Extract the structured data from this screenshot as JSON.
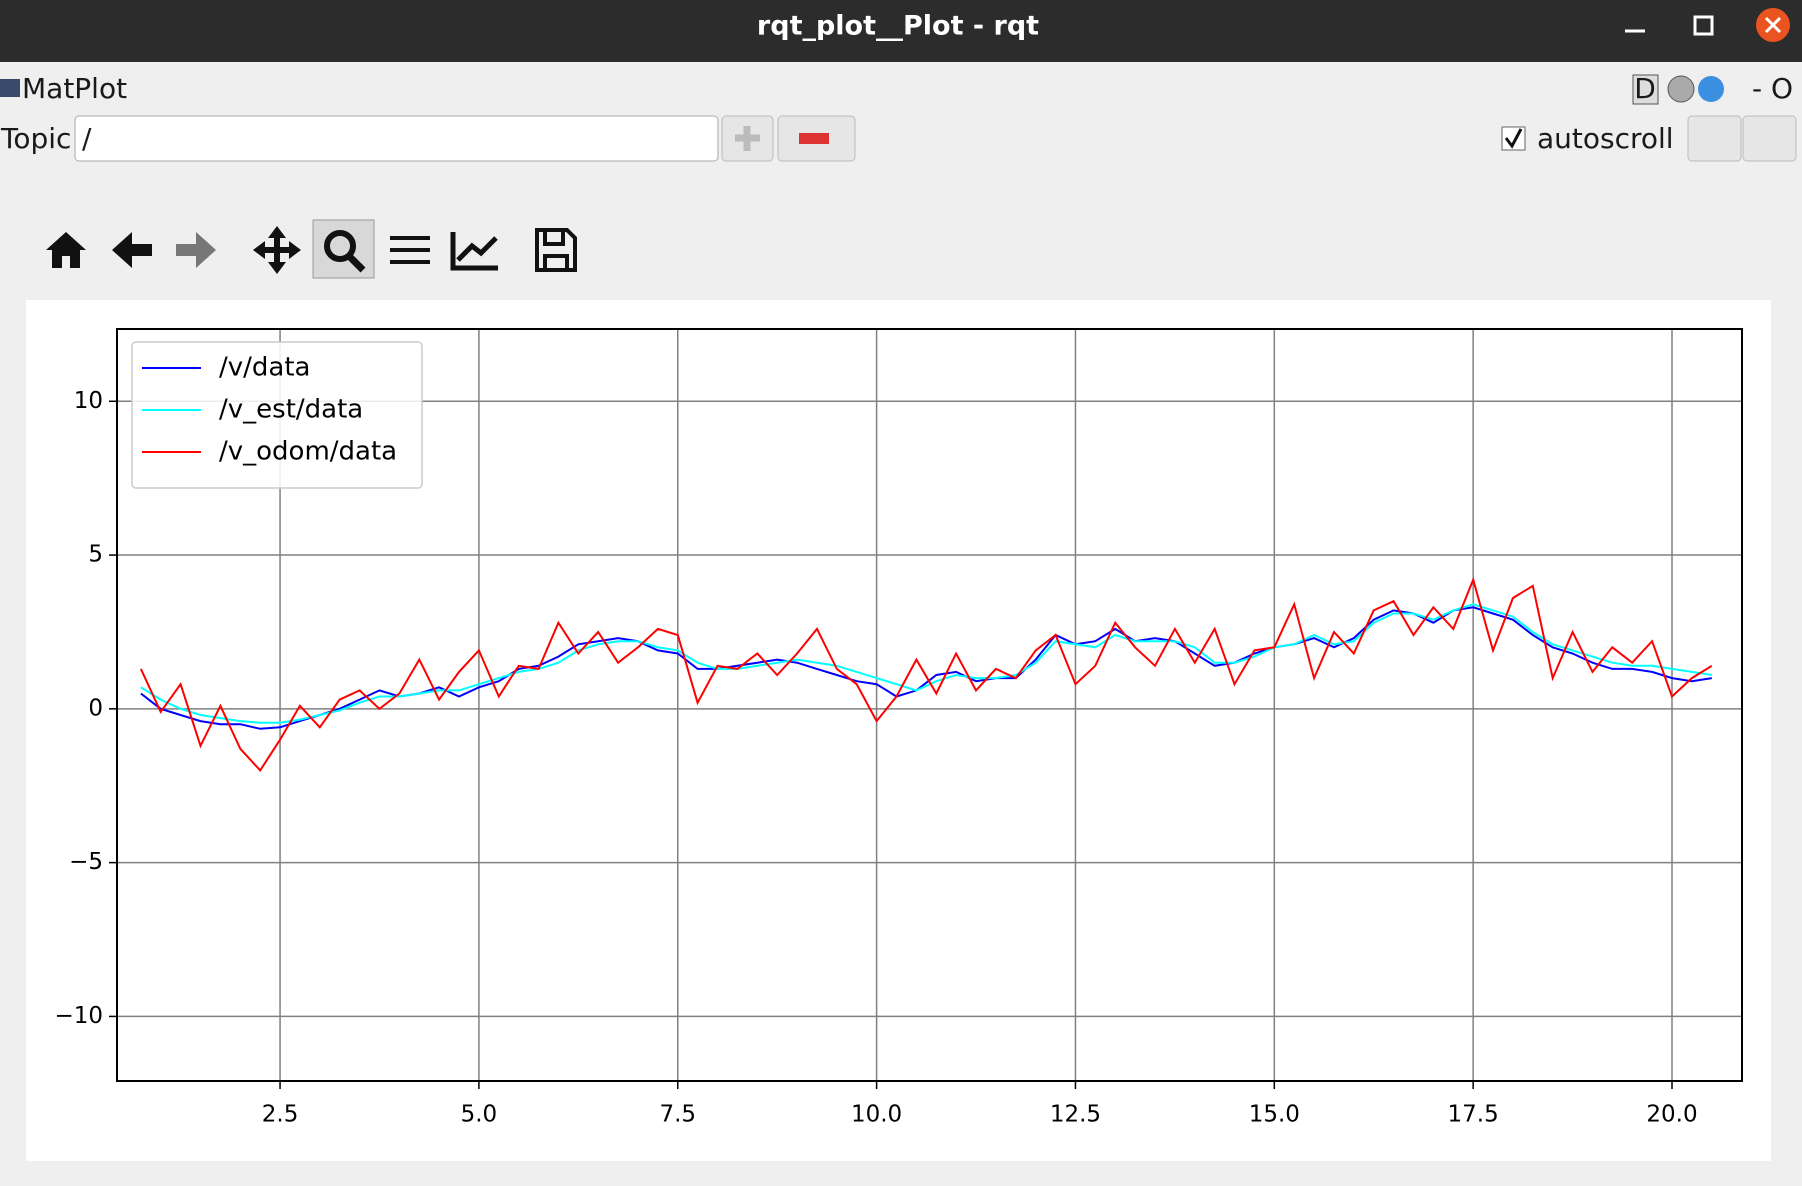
{
  "window": {
    "title": "rqt_plot__Plot - rqt",
    "plugin_name": "MatPlot",
    "plugin_controls": "D",
    "plugin_right": "- O"
  },
  "toolbar": {
    "topic_label": "Topic",
    "topic_value": "/",
    "autoscroll_label": "autoscroll"
  },
  "chart_data": {
    "type": "line",
    "x": [
      0.75,
      1,
      1.25,
      1.5,
      1.75,
      2,
      2.25,
      2.5,
      2.75,
      3,
      3.25,
      3.5,
      3.75,
      4,
      4.25,
      4.5,
      4.75,
      5,
      5.25,
      5.5,
      5.75,
      6,
      6.25,
      6.5,
      6.75,
      7,
      7.25,
      7.5,
      7.75,
      8,
      8.25,
      8.5,
      8.75,
      9,
      9.25,
      9.5,
      9.75,
      10,
      10.25,
      10.5,
      10.75,
      11,
      11.25,
      11.5,
      11.75,
      12,
      12.25,
      12.5,
      12.75,
      13,
      13.25,
      13.5,
      13.75,
      14,
      14.25,
      14.5,
      14.75,
      15,
      15.25,
      15.5,
      15.75,
      16,
      16.25,
      16.5,
      16.75,
      17,
      17.25,
      17.5,
      17.75,
      18,
      18.25,
      18.5,
      18.75,
      19,
      19.25,
      19.5,
      19.75,
      20,
      20.25,
      20.5
    ],
    "series": [
      {
        "name": "/v/data",
        "color": "#0000ff",
        "values": [
          0.5,
          0,
          -0.2,
          -0.4,
          -0.5,
          -0.5,
          -0.65,
          -0.6,
          -0.4,
          -0.2,
          0,
          0.3,
          0.6,
          0.4,
          0.5,
          0.7,
          0.4,
          0.7,
          0.9,
          1.3,
          1.4,
          1.7,
          2.1,
          2.2,
          2.3,
          2.2,
          1.9,
          1.8,
          1.3,
          1.3,
          1.4,
          1.5,
          1.6,
          1.5,
          1.3,
          1.1,
          0.9,
          0.8,
          0.4,
          0.6,
          1.1,
          1.2,
          0.9,
          1.0,
          1.0,
          1.6,
          2.4,
          2.1,
          2.2,
          2.6,
          2.2,
          2.3,
          2.2,
          1.8,
          1.4,
          1.5,
          1.8,
          2.0,
          2.1,
          2.3,
          2.0,
          2.3,
          2.9,
          3.2,
          3.1,
          2.8,
          3.2,
          3.3,
          3.1,
          2.9,
          2.4,
          2.0,
          1.8,
          1.5,
          1.3,
          1.3,
          1.2,
          1.0,
          0.9,
          1.0
        ]
      },
      {
        "name": "/v_est/data",
        "color": "#00ffff",
        "values": [
          0.7,
          0.3,
          0,
          -0.2,
          -0.3,
          -0.4,
          -0.45,
          -0.45,
          -0.35,
          -0.2,
          -0.05,
          0.2,
          0.4,
          0.4,
          0.5,
          0.6,
          0.6,
          0.8,
          1.0,
          1.2,
          1.3,
          1.5,
          1.9,
          2.1,
          2.2,
          2.2,
          2.0,
          1.9,
          1.5,
          1.3,
          1.3,
          1.4,
          1.5,
          1.6,
          1.5,
          1.4,
          1.2,
          1.0,
          0.8,
          0.6,
          0.9,
          1.1,
          1.0,
          1.0,
          1.1,
          1.5,
          2.2,
          2.1,
          2.0,
          2.4,
          2.2,
          2.2,
          2.2,
          2.0,
          1.5,
          1.5,
          1.7,
          2.0,
          2.1,
          2.4,
          2.1,
          2.2,
          2.8,
          3.1,
          3.1,
          2.9,
          3.2,
          3.4,
          3.2,
          3.0,
          2.5,
          2.1,
          1.9,
          1.7,
          1.5,
          1.4,
          1.4,
          1.3,
          1.2,
          1.1
        ]
      },
      {
        "name": "/v_odom/data",
        "color": "#ff0000",
        "values": [
          1.3,
          -0.1,
          0.8,
          -1.2,
          0.1,
          -1.3,
          -2.0,
          -1.0,
          0.1,
          -0.6,
          0.3,
          0.6,
          0.0,
          0.5,
          1.6,
          0.3,
          1.2,
          1.9,
          0.4,
          1.4,
          1.3,
          2.8,
          1.8,
          2.5,
          1.5,
          2.0,
          2.6,
          2.4,
          0.2,
          1.4,
          1.3,
          1.8,
          1.1,
          1.8,
          2.6,
          1.3,
          0.8,
          -0.4,
          0.4,
          1.6,
          0.5,
          1.8,
          0.6,
          1.3,
          1.0,
          1.9,
          2.4,
          0.8,
          1.4,
          2.8,
          2.0,
          1.4,
          2.6,
          1.5,
          2.6,
          0.8,
          1.9,
          2.0,
          3.4,
          1.0,
          2.5,
          1.8,
          3.2,
          3.5,
          2.4,
          3.3,
          2.6,
          4.2,
          1.9,
          3.6,
          4.0,
          1.0,
          2.5,
          1.2,
          2.0,
          1.5,
          2.2,
          0.4,
          1.0,
          1.4
        ]
      }
    ],
    "xlim": [
      0.45,
      20.88
    ],
    "ylim": [
      -12.1,
      12.35
    ],
    "xticks": [
      2.5,
      {
        "value": 5,
        "label": "5.0"
      },
      7.5,
      {
        "value": 10,
        "label": "10.0"
      },
      12.5,
      {
        "value": 15,
        "label": "15.0"
      },
      17.5,
      {
        "value": 20,
        "label": "20.0"
      }
    ],
    "yticks": [
      {
        "value": -10,
        "label": "−10"
      },
      {
        "value": -5,
        "label": "−5"
      },
      0,
      5,
      10
    ],
    "grid": true,
    "legend": "upper-left"
  }
}
